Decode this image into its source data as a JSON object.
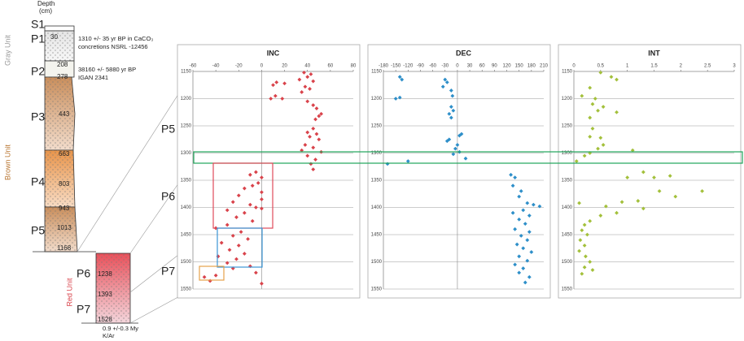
{
  "column": {
    "header": [
      "Depth",
      "(cm)"
    ],
    "units": [
      "S1",
      "P1",
      "P2",
      "P3",
      "P4",
      "P5",
      "P6",
      "P7"
    ],
    "depths": [
      30,
      208,
      278,
      443,
      663,
      803,
      943,
      1013,
      1168,
      1238,
      1393,
      1528
    ],
    "dates": [
      [
        "1310 +/- 35 yr BP in CaCO₃",
        "concretions NSRL -12456"
      ],
      [
        "38160 +/- 5880 yr BP",
        "IGAN 2341"
      ],
      [
        "0.9 +/-0.3 My",
        "K/Ar"
      ]
    ],
    "groups": [
      "Gray Unit",
      "Brown Unit",
      "Red Unit"
    ]
  },
  "interval_labels": [
    "P5",
    "P6",
    "P7"
  ],
  "chart_data": [
    {
      "type": "scatter",
      "title": "INC",
      "color": "#d9434b",
      "xlim": [
        -60,
        80
      ],
      "xticks": [
        -60,
        -40,
        -20,
        0,
        20,
        40,
        60,
        80
      ],
      "ylim": [
        1150,
        1550
      ],
      "y_reversed": true,
      "yticks": [
        1150,
        1200,
        1250,
        1300,
        1350,
        1400,
        1450,
        1500,
        1550
      ],
      "grid": true,
      "zero_line": true,
      "x": [
        37,
        43,
        40,
        33,
        45,
        13,
        20,
        10,
        38,
        42,
        35,
        12,
        8,
        18,
        40,
        45,
        48,
        52,
        50,
        47,
        45,
        40,
        48,
        42,
        50,
        38,
        45,
        35,
        52,
        40,
        47,
        43,
        45,
        -5,
        -10,
        0,
        -3,
        -8,
        -15,
        0,
        -20,
        0,
        -25,
        -10,
        -5,
        0,
        -30,
        -15,
        -22,
        -8,
        -30,
        -40,
        -18,
        -25,
        -12,
        -35,
        -20,
        -28,
        -15,
        -38,
        -22,
        -30,
        -10,
        -25,
        -5,
        -40,
        -50,
        -45,
        0
      ],
      "values": [
        1152,
        1155,
        1160,
        1165,
        1168,
        1170,
        1172,
        1175,
        1178,
        1182,
        1188,
        1195,
        1200,
        1200,
        1205,
        1212,
        1218,
        1228,
        1232,
        1238,
        1255,
        1262,
        1265,
        1270,
        1275,
        1285,
        1290,
        1295,
        1298,
        1305,
        1312,
        1320,
        1330,
        1335,
        1340,
        1345,
        1355,
        1360,
        1365,
        1372,
        1378,
        1385,
        1390,
        1395,
        1400,
        1402,
        1405,
        1410,
        1418,
        1425,
        1432,
        1438,
        1445,
        1452,
        1458,
        1465,
        1470,
        1478,
        1485,
        1490,
        1495,
        1502,
        1508,
        1512,
        1520,
        1525,
        1528,
        1535,
        1540
      ]
    },
    {
      "type": "scatter",
      "title": "DEC",
      "color": "#2e8fc9",
      "xlim": [
        -180,
        210
      ],
      "xticks": [
        -180,
        -150,
        -120,
        -90,
        -60,
        -30,
        0,
        30,
        60,
        90,
        120,
        150,
        180,
        210
      ],
      "ylim": [
        1150,
        1550
      ],
      "y_reversed": true,
      "yticks": [
        1150,
        1200,
        1250,
        1300,
        1350,
        1400,
        1450,
        1500,
        1550
      ],
      "grid": true,
      "zero_line": true,
      "x": [
        -135,
        -140,
        -30,
        -25,
        -35,
        -15,
        -12,
        -150,
        -140,
        -15,
        -10,
        -20,
        -15,
        10,
        5,
        -20,
        -25,
        0,
        -5,
        5,
        -10,
        20,
        -170,
        -120,
        130,
        140,
        135,
        155,
        150,
        170,
        185,
        200,
        160,
        135,
        175,
        150,
        165,
        140,
        175,
        155,
        170,
        145,
        160,
        180,
        150,
        170,
        140,
        160,
        150,
        175,
        165
      ],
      "values": [
        1165,
        1160,
        1165,
        1170,
        1178,
        1185,
        1195,
        1200,
        1198,
        1215,
        1222,
        1228,
        1235,
        1265,
        1268,
        1275,
        1278,
        1285,
        1292,
        1298,
        1302,
        1310,
        1320,
        1315,
        1340,
        1345,
        1360,
        1370,
        1380,
        1392,
        1395,
        1398,
        1405,
        1410,
        1415,
        1422,
        1430,
        1440,
        1445,
        1452,
        1460,
        1468,
        1475,
        1482,
        1490,
        1498,
        1505,
        1512,
        1520,
        1528,
        1538
      ]
    },
    {
      "type": "scatter",
      "title": "INT",
      "color": "#a3c03b",
      "xlim": [
        0,
        3
      ],
      "xticks": [
        0,
        0.5,
        1,
        1.5,
        2,
        2.5,
        3
      ],
      "ylim": [
        1150,
        1550
      ],
      "y_reversed": true,
      "yticks": [
        1150,
        1200,
        1250,
        1300,
        1350,
        1400,
        1450,
        1500,
        1550
      ],
      "grid": true,
      "zero_line": false,
      "x": [
        0.5,
        0.7,
        0.8,
        0.3,
        0.15,
        0.4,
        0.35,
        0.55,
        0.45,
        0.3,
        0.8,
        0.35,
        0.3,
        0.5,
        0.55,
        0.45,
        0.3,
        1.1,
        0.2,
        0.05,
        1.3,
        1.5,
        1.0,
        1.8,
        2.4,
        1.6,
        1.9,
        1.2,
        0.9,
        0.1,
        0.6,
        1.3,
        0.8,
        0.5,
        0.3,
        0.2,
        0.15,
        0.25,
        0.12,
        0.2,
        0.1,
        0.22,
        0.3,
        0.2,
        0.35,
        0.15
      ],
      "values": [
        1152,
        1160,
        1165,
        1180,
        1195,
        1200,
        1210,
        1215,
        1222,
        1235,
        1225,
        1255,
        1270,
        1272,
        1285,
        1292,
        1300,
        1295,
        1305,
        1315,
        1335,
        1345,
        1345,
        1342,
        1370,
        1370,
        1380,
        1388,
        1390,
        1392,
        1398,
        1402,
        1410,
        1415,
        1425,
        1432,
        1442,
        1450,
        1460,
        1470,
        1480,
        1490,
        1500,
        1510,
        1515,
        1522
      ]
    }
  ]
}
